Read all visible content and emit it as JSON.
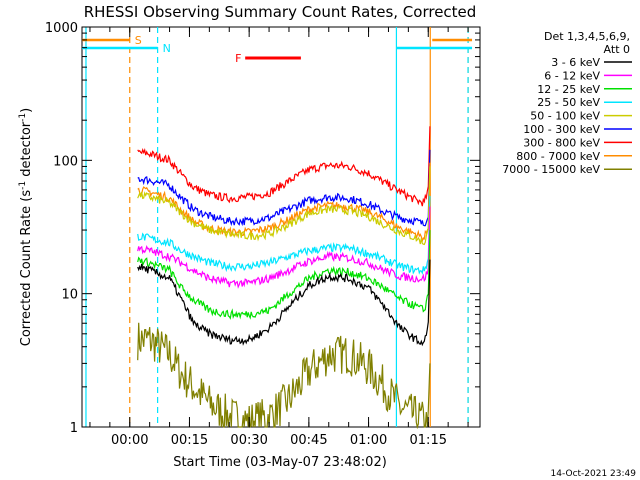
{
  "chart_data": {
    "type": "line",
    "title": "RHESSI Observing Summary Count Rates, Corrected",
    "xlabel": "Start Time (03-May-07 23:48:02)",
    "ylabel": "Corrected Count Rate (s-1 detector-1)",
    "xlim_min": [
      -12,
      88
    ],
    "ylim": [
      1,
      1000
    ],
    "yscale": "log",
    "x_ticks": [
      {
        "min": 0,
        "label": "00:00"
      },
      {
        "min": 15,
        "label": "00:15"
      },
      {
        "min": 30,
        "label": "00:30"
      },
      {
        "min": 45,
        "label": "00:45"
      },
      {
        "min": 60,
        "label": "01:00"
      },
      {
        "min": 75,
        "label": "01:15"
      }
    ],
    "y_ticks": [
      {
        "value": 1000,
        "label": "1000"
      },
      {
        "value": 100,
        "label": "100"
      },
      {
        "value": 10,
        "label": "10"
      },
      {
        "value": 1,
        "label": "1"
      }
    ],
    "legend_header": [
      "Det 1,3,4,5,6,9,",
      "Att 0"
    ],
    "timestamp": "14-Oct-2021 23:49",
    "flags": [
      {
        "label": "S",
        "color": "#ff8c00",
        "x_min": [
          -12,
          0
        ],
        "x_min2": [
          76,
          86
        ]
      },
      {
        "label": "N",
        "color": "#00e5ff",
        "x_min": [
          -12,
          7
        ],
        "x_min2": [
          67,
          86
        ]
      },
      {
        "label": "F",
        "color": "#ff0000",
        "x_min": [
          29,
          43
        ]
      }
    ],
    "vertical_lines": [
      {
        "x_min": -11,
        "color": "#00e5ff",
        "style": "solid"
      },
      {
        "x_min": 0,
        "color": "#ff8c00",
        "style": "dashed"
      },
      {
        "x_min": 7,
        "color": "#00e5ff",
        "style": "dashed"
      },
      {
        "x_min": 67,
        "color": "#00e5ff",
        "style": "solid"
      },
      {
        "x_min": 75.5,
        "color": "#ff8c00",
        "style": "solid"
      },
      {
        "x_min": 85,
        "color": "#ff8c00",
        "style": "dashed"
      },
      {
        "x_min": 85,
        "color": "#00e5ff",
        "style": "dashed"
      }
    ],
    "x": [
      2,
      5,
      10,
      13,
      16,
      20,
      25,
      30,
      35,
      40,
      45,
      50,
      55,
      60,
      64,
      68,
      72,
      74,
      75
    ],
    "series": [
      {
        "name": "3 - 6 keV",
        "color": "#000000",
        "values": [
          16,
          15,
          13,
          9,
          6,
          5,
          4.5,
          4.5,
          5.5,
          8,
          11.5,
          13.5,
          13,
          11,
          8,
          5.5,
          4.5,
          4.2,
          6
        ]
      },
      {
        "name": "6 - 12 keV",
        "color": "#ff00ff",
        "values": [
          22,
          21,
          19,
          17,
          15,
          13,
          12,
          12,
          13,
          15,
          17.5,
          19,
          18.5,
          17,
          15,
          13.5,
          13,
          13,
          15
        ]
      },
      {
        "name": "12 - 25 keV",
        "color": "#00e000",
        "values": [
          18,
          17,
          15,
          11,
          9,
          7.5,
          7,
          7,
          7.5,
          10,
          13,
          15,
          14.5,
          13,
          11,
          9,
          8,
          7.5,
          10
        ]
      },
      {
        "name": "25 - 50 keV",
        "color": "#00e5ff",
        "values": [
          27,
          26,
          24,
          21,
          19,
          17,
          16,
          16,
          17,
          19,
          21,
          22,
          22,
          20,
          18,
          16,
          15,
          15,
          18
        ]
      },
      {
        "name": "50 - 100 keV",
        "color": "#cccc00",
        "values": [
          55,
          53,
          48,
          40,
          34,
          30,
          28,
          27,
          28,
          33,
          40,
          43,
          42,
          38,
          33,
          29,
          26,
          24,
          30
        ]
      },
      {
        "name": "100 - 300 keV",
        "color": "#0000ff",
        "values": [
          73,
          71,
          65,
          52,
          43,
          38,
          35,
          35,
          37,
          43,
          50,
          53,
          52,
          47,
          41,
          37,
          35,
          33,
          40
        ]
      },
      {
        "name": "300 - 800 keV",
        "color": "#ff0000",
        "values": [
          115,
          112,
          100,
          78,
          63,
          55,
          52,
          53,
          57,
          70,
          85,
          92,
          90,
          80,
          68,
          58,
          50,
          48,
          60
        ]
      },
      {
        "name": "800 - 7000 keV",
        "color": "#ff8c00",
        "values": [
          60,
          58,
          52,
          42,
          35,
          31,
          29,
          29,
          31,
          36,
          43,
          46,
          45,
          41,
          36,
          31,
          28,
          26,
          32
        ]
      },
      {
        "name": "7000 - 15000 keV",
        "color": "#808000",
        "values": [
          4.5,
          4.5,
          3.5,
          2.5,
          2,
          1.5,
          1.2,
          1.1,
          1.2,
          1.6,
          2.6,
          3.5,
          3.5,
          2.8,
          2,
          1.4,
          1.2,
          1.1,
          1
        ]
      }
    ]
  }
}
